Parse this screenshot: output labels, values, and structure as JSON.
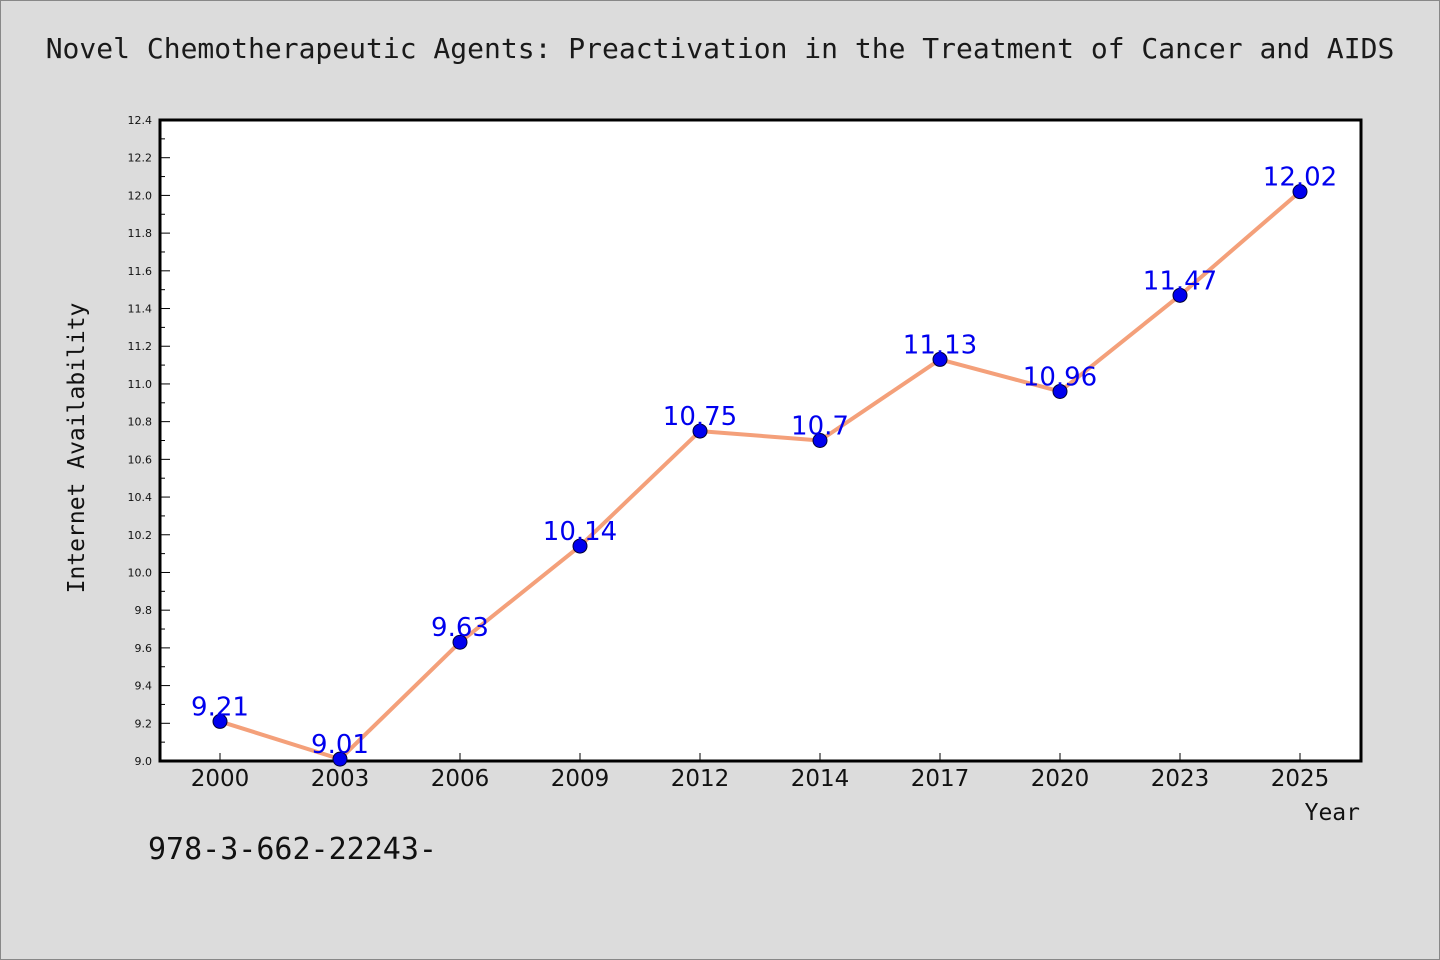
{
  "chart_data": {
    "type": "line",
    "title": "Novel Chemotherapeutic Agents: Preactivation in the Treatment of Cancer and AIDS",
    "xlabel": "Year",
    "ylabel": "Internet Availability",
    "categories": [
      "2000",
      "2003",
      "2006",
      "2009",
      "2012",
      "2014",
      "2017",
      "2020",
      "2023",
      "2025"
    ],
    "values": [
      9.21,
      9.01,
      9.63,
      10.14,
      10.75,
      10.7,
      11.13,
      10.96,
      11.47,
      12.02
    ],
    "data_labels": [
      "9.21",
      "9.01",
      "9.63",
      "10.14",
      "10.75",
      "10.7",
      "11.13",
      "10.96",
      "11.47",
      "12.02"
    ],
    "ylim": [
      9.0,
      12.4
    ],
    "yticks": [
      "9.0",
      "9.2",
      "9.4",
      "9.6",
      "9.8",
      "10.0",
      "10.2",
      "10.4",
      "10.6",
      "10.8",
      "11.0",
      "11.2",
      "11.4",
      "11.6",
      "11.8",
      "12.0",
      "12.2",
      "12.4"
    ],
    "grid": false,
    "legend": "none",
    "line_color": "#f4a07a",
    "marker_color": "#0000ee",
    "label_color": "#0000ee",
    "background_color": "#dcdcdc",
    "plot_background_color": "#ffffff"
  },
  "footer": {
    "text": "978-3-662-22243-"
  }
}
